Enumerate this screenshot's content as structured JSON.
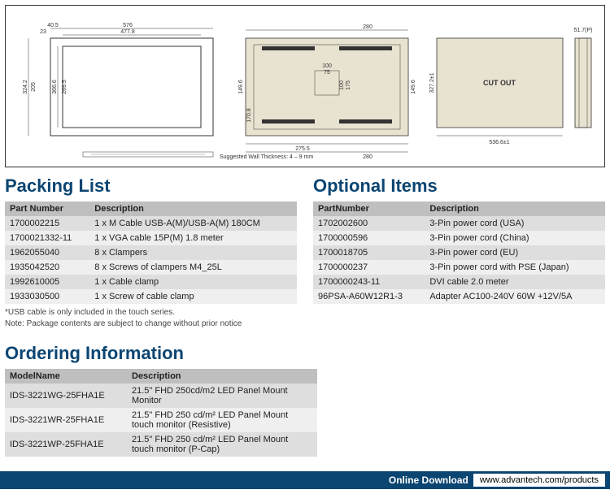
{
  "diagram": {
    "front": {
      "dims": {
        "w_out": "576",
        "w_in": "477.8",
        "w_off": "40.5",
        "w_off2": "23",
        "h_out": "324.2",
        "h_mid": "366.6",
        "h_in": "269.5",
        "h_off": "205"
      }
    },
    "back": {
      "dims": {
        "top1": "280",
        "mid": "275.5",
        "bot": "280",
        "h1": "149.6",
        "h2": "149.6",
        "h3": "170.8",
        "inner_w": "100",
        "inner_w2": "75",
        "inner_h": "100",
        "inner_h2": "175"
      }
    },
    "cutout": {
      "label": "CUT OUT",
      "w": "536.6±1",
      "h": "327.2±1"
    },
    "side": {
      "depth": "51.7(P)"
    },
    "note": "Suggested Wall Thickness: 4 – 9 mm"
  },
  "packing": {
    "title": "Packing List",
    "columns": [
      "Part Number",
      "Description"
    ],
    "rows": [
      [
        "1700002215",
        "1 x M Cable USB-A(M)/USB-A(M) 180CM"
      ],
      [
        "1700021332-11",
        "1 x VGA cable 15P(M) 1.8 meter"
      ],
      [
        "1962055040",
        "8 x Clampers"
      ],
      [
        "1935042520",
        "8 x Screws of clampers M4_25L"
      ],
      [
        "1992610005",
        "1 x Cable clamp"
      ],
      [
        "1933030500",
        "1 x Screw of cable clamp"
      ]
    ],
    "footnotes": [
      "*USB cable is only included in the touch series.",
      "Note: Package contents are subject to change without prior notice"
    ],
    "alt_colors": [
      "#dedede",
      "#efefef"
    ]
  },
  "optional": {
    "title": "Optional Items",
    "columns": [
      "PartNumber",
      "Description"
    ],
    "rows": [
      [
        "1702002600",
        "3-Pin power cord (USA)"
      ],
      [
        "1700000596",
        "3-Pin power cord (China)"
      ],
      [
        "1700018705",
        "3-Pin power cord (EU)"
      ],
      [
        "1700000237",
        "3-Pin power cord with PSE (Japan)"
      ],
      [
        "1700000243-11",
        "DVI cable 2.0 meter"
      ],
      [
        "96PSA-A60W12R1-3",
        "Adapter AC100-240V 60W +12V/5A"
      ]
    ]
  },
  "ordering": {
    "title": "Ordering Information",
    "columns": [
      "ModelName",
      "Description"
    ],
    "rows": [
      [
        "IDS-3221WG-25FHA1E",
        "21.5\" FHD 250cd/m2 LED Panel Mount Monitor"
      ],
      [
        "IDS-3221WR-25FHA1E",
        "21.5\" FHD 250 cd/m² LED Panel Mount touch monitor (Resistive)"
      ],
      [
        "IDS-3221WP-25FHA1E",
        "21.5\" FHD 250 cd/m² LED Panel Mount touch monitor (P-Cap)"
      ]
    ],
    "col_widths": [
      "150px",
      "auto"
    ]
  },
  "download": {
    "label": "Online Download",
    "url": "www.advantech.com/products"
  }
}
